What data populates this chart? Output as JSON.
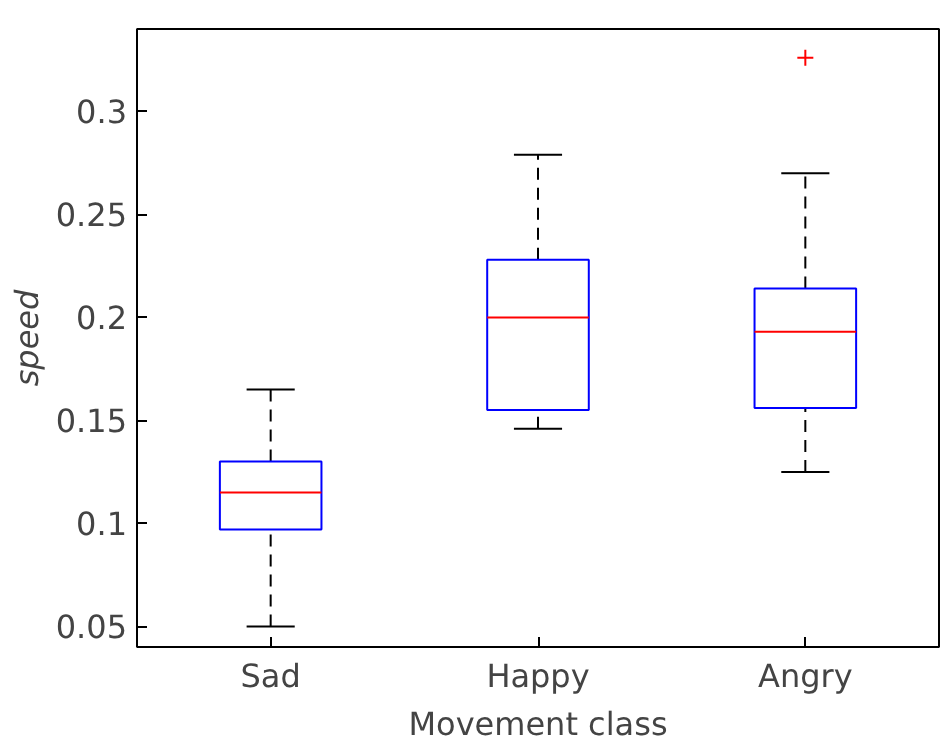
{
  "chart_data": {
    "type": "box",
    "xlabel": "Movement class",
    "ylabel": "speed",
    "categories": [
      "Sad",
      "Happy",
      "Angry"
    ],
    "ylim": [
      0.04,
      0.34
    ],
    "yticks": [
      0.05,
      0.1,
      0.15,
      0.2,
      0.25,
      0.3
    ],
    "grid": false,
    "color": "#0000ff",
    "boxes": [
      {
        "low": 0.05,
        "q1": 0.097,
        "median": 0.115,
        "q3": 0.13,
        "high": 0.165
      },
      {
        "low": 0.146,
        "q1": 0.155,
        "median": 0.2,
        "q3": 0.228,
        "high": 0.279
      },
      {
        "low": 0.125,
        "q1": 0.156,
        "median": 0.193,
        "q3": 0.214,
        "high": 0.27,
        "outliers": [
          0.326
        ]
      }
    ]
  }
}
